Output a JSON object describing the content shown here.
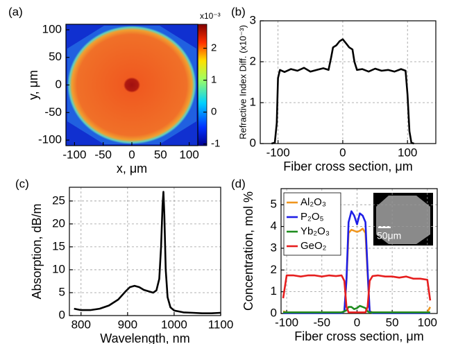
{
  "chart_data": [
    {
      "type": "heatmap",
      "title": "(a)",
      "xlabel": "x, μm",
      "ylabel": "y, μm",
      "xlim": [
        -115,
        115
      ],
      "ylim": [
        -110,
        110
      ],
      "xticks": [
        -100,
        -50,
        0,
        50,
        100
      ],
      "yticks": [
        100,
        50,
        0,
        -50,
        -100
      ],
      "colorbar_label": "x10⁻³",
      "clim": [
        -1.05,
        2.75
      ],
      "cticks": [
        -1,
        0,
        1,
        2
      ]
    },
    {
      "type": "line",
      "title": "(b)",
      "xlabel": "Fiber cross section, μm",
      "ylabel": "Refractive Index Diff. (x10⁻³)",
      "xlim": [
        -127.5,
        143.75
      ],
      "ylim": [
        0,
        3
      ],
      "xticks": [
        -100,
        0,
        100
      ],
      "yticks": [
        0,
        1,
        2,
        3
      ],
      "grid": true,
      "color": "#000000",
      "x": [
        -110,
        -105,
        -102,
        -100,
        -97,
        -90,
        -80,
        -70,
        -60,
        -50,
        -40,
        -30,
        -22,
        -18,
        -15,
        -10,
        -5,
        0,
        5,
        10,
        15,
        18,
        22,
        30,
        40,
        50,
        60,
        70,
        80,
        90,
        97,
        100,
        103,
        106,
        110
      ],
      "values": [
        0,
        0.02,
        0.5,
        1.6,
        1.8,
        1.75,
        1.82,
        1.78,
        1.85,
        1.76,
        1.8,
        1.84,
        1.8,
        2.1,
        2.35,
        2.4,
        2.5,
        2.55,
        2.45,
        2.35,
        2.3,
        2.0,
        1.8,
        1.82,
        1.76,
        1.83,
        1.78,
        1.8,
        1.76,
        1.82,
        1.78,
        1.2,
        0.3,
        0.02,
        0
      ]
    },
    {
      "type": "line",
      "title": "(c)",
      "xlabel": "Wavelength, nm",
      "ylabel": "Absorption, dB/m",
      "xlim": [
        775,
        1100
      ],
      "ylim": [
        0,
        28
      ],
      "xticks": [
        800,
        900,
        1000,
        1100
      ],
      "yticks": [
        0,
        5,
        10,
        15,
        20,
        25
      ],
      "grid": true,
      "color": "#000000",
      "x": [
        785,
        800,
        820,
        840,
        860,
        880,
        895,
        905,
        915,
        925,
        935,
        945,
        955,
        962,
        968,
        972,
        975,
        977,
        979,
        982,
        986,
        992,
        1000,
        1020,
        1040,
        1060,
        1080,
        1100
      ],
      "values": [
        1.5,
        1.2,
        1.2,
        1.5,
        2.2,
        3.5,
        5.2,
        6.2,
        6.5,
        6.2,
        5.6,
        5.3,
        5.0,
        5.5,
        8,
        15,
        24,
        27,
        22,
        10,
        4,
        1.8,
        1.1,
        0.7,
        0.6,
        0.5,
        0.5,
        0.6
      ]
    },
    {
      "type": "line",
      "title": "(d)",
      "xlabel": "Fiber cross section, μm",
      "ylabel": "Concentration, mol %",
      "xlim": [
        -108,
        114
      ],
      "ylim": [
        0,
        5.74
      ],
      "xticks": [
        -100,
        -50,
        0,
        50,
        100
      ],
      "yticks": [
        0,
        1,
        2,
        3,
        4,
        5
      ],
      "grid": true,
      "legend": "upper left",
      "inset_label": "50μm",
      "x": [
        -105,
        -100,
        -90,
        -80,
        -70,
        -60,
        -50,
        -40,
        -30,
        -22,
        -18,
        -15,
        -12,
        -8,
        -4,
        0,
        4,
        8,
        12,
        15,
        18,
        22,
        30,
        40,
        50,
        60,
        70,
        80,
        90,
        100,
        104
      ],
      "series": [
        {
          "name": "Al₂O₃",
          "color": "#f0961e",
          "values": [
            0.1,
            0.05,
            0.05,
            0.05,
            0.05,
            0.05,
            0.05,
            0.05,
            0.05,
            0.05,
            0.1,
            1.5,
            3.7,
            3.85,
            3.8,
            3.75,
            3.8,
            3.9,
            3.7,
            1.8,
            0.1,
            0.05,
            0.05,
            0.05,
            0.05,
            0.05,
            0.05,
            0.05,
            0.05,
            0.05,
            0.3
          ]
        },
        {
          "name": "P₂O₅",
          "color": "#1e1ee6",
          "values": [
            0.02,
            0.02,
            0.02,
            0.02,
            0.02,
            0.02,
            0.02,
            0.02,
            0.02,
            0.02,
            0.1,
            1.6,
            4.2,
            4.7,
            4.5,
            4.1,
            4.6,
            4.5,
            4.2,
            2.0,
            0.1,
            0.02,
            0.02,
            0.02,
            0.02,
            0.02,
            0.02,
            0.02,
            0.02,
            0.02,
            0.02
          ]
        },
        {
          "name": "Yb₂O₃",
          "color": "#1e8c1e",
          "values": [
            0.05,
            0.05,
            0.05,
            0.05,
            0.05,
            0.05,
            0.05,
            0.05,
            0.05,
            0.05,
            0.1,
            0.15,
            0.3,
            0.3,
            0.2,
            0.25,
            0.35,
            0.3,
            0.25,
            0.1,
            0.05,
            0.05,
            0.05,
            0.05,
            0.05,
            0.05,
            0.05,
            0.05,
            0.05,
            0.05,
            0.05
          ]
        },
        {
          "name": "GeO₂",
          "color": "#e61e1e",
          "values": [
            0.7,
            1.75,
            1.75,
            1.7,
            1.75,
            1.75,
            1.7,
            1.75,
            1.72,
            1.75,
            1.5,
            0.3,
            0.05,
            0.05,
            0.05,
            0.05,
            0.05,
            0.05,
            0.05,
            0.3,
            1.5,
            1.72,
            1.75,
            1.7,
            1.7,
            1.65,
            1.7,
            1.6,
            1.6,
            1.55,
            0.6
          ]
        }
      ]
    }
  ]
}
